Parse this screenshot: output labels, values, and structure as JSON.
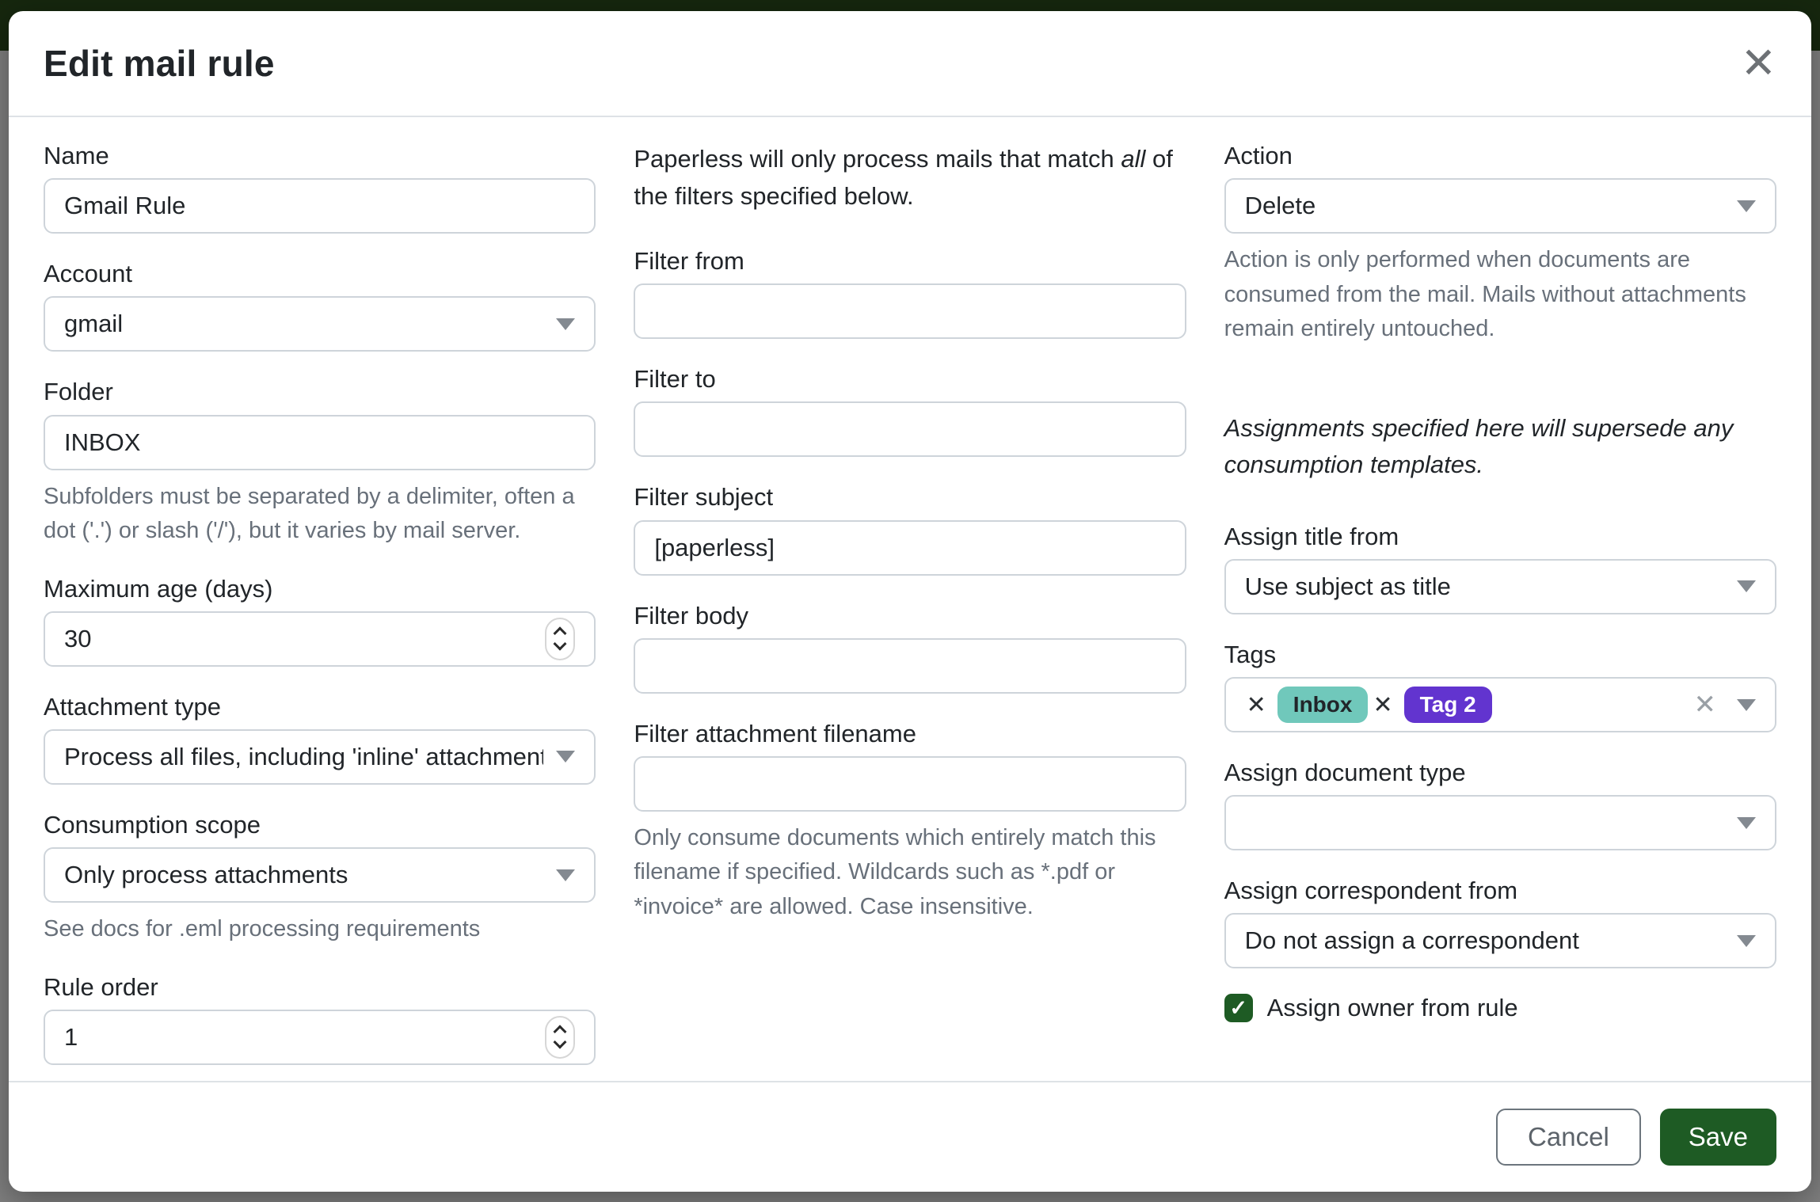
{
  "modal": {
    "title": "Edit mail rule"
  },
  "icons": {
    "close": "✕",
    "remove": "✕",
    "clear": "✕",
    "check": "✓"
  },
  "colors": {
    "underlay_header_green": "#16270e",
    "primary_green": "#1e5b24",
    "checkbox_green": "#1e5b24"
  },
  "columns": {
    "left": {
      "name": {
        "label": "Name",
        "value": "Gmail Rule"
      },
      "account": {
        "label": "Account",
        "value": "gmail"
      },
      "folder": {
        "label": "Folder",
        "value": "INBOX",
        "help": "Subfolders must be separated by a delimiter, often a dot ('.') or slash ('/'), but it varies by mail server."
      },
      "max_age": {
        "label": "Maximum age (days)",
        "value": "30"
      },
      "attachment_type": {
        "label": "Attachment type",
        "value": "Process all files, including 'inline' attachments"
      },
      "consumption_scope": {
        "label": "Consumption scope",
        "value": "Only process attachments",
        "help": "See docs for .eml processing requirements"
      },
      "rule_order": {
        "label": "Rule order",
        "value": "1"
      }
    },
    "middle": {
      "intro_pre": "Paperless will only process mails that match ",
      "intro_italic": "all",
      "intro_post": " of the filters specified below.",
      "filter_from": {
        "label": "Filter from",
        "value": ""
      },
      "filter_to": {
        "label": "Filter to",
        "value": ""
      },
      "filter_subject": {
        "label": "Filter subject",
        "value": "[paperless]"
      },
      "filter_body": {
        "label": "Filter body",
        "value": ""
      },
      "filter_attachment_filename": {
        "label": "Filter attachment filename",
        "value": "",
        "help": "Only consume documents which entirely match this filename if specified. Wildcards such as *.pdf or *invoice* are allowed. Case insensitive."
      }
    },
    "right": {
      "action": {
        "label": "Action",
        "value": "Delete",
        "help": "Action is only performed when documents are consumed from the mail. Mails without attachments remain entirely untouched."
      },
      "assignments_note": "Assignments specified here will supersede any consumption templates.",
      "assign_title_from": {
        "label": "Assign title from",
        "value": "Use subject as title"
      },
      "tags": {
        "label": "Tags",
        "chips": [
          {
            "label": "Inbox",
            "color": "#70c8bb",
            "text_color": "#212529"
          },
          {
            "label": "Tag 2",
            "color": "#6234cf",
            "text_color": "#ffffff"
          }
        ]
      },
      "assign_document_type": {
        "label": "Assign document type",
        "value": ""
      },
      "assign_correspondent_from": {
        "label": "Assign correspondent from",
        "value": "Do not assign a correspondent"
      },
      "assign_owner": {
        "label": "Assign owner from rule",
        "checked": true
      }
    }
  },
  "footer": {
    "cancel_label": "Cancel",
    "save_label": "Save"
  }
}
